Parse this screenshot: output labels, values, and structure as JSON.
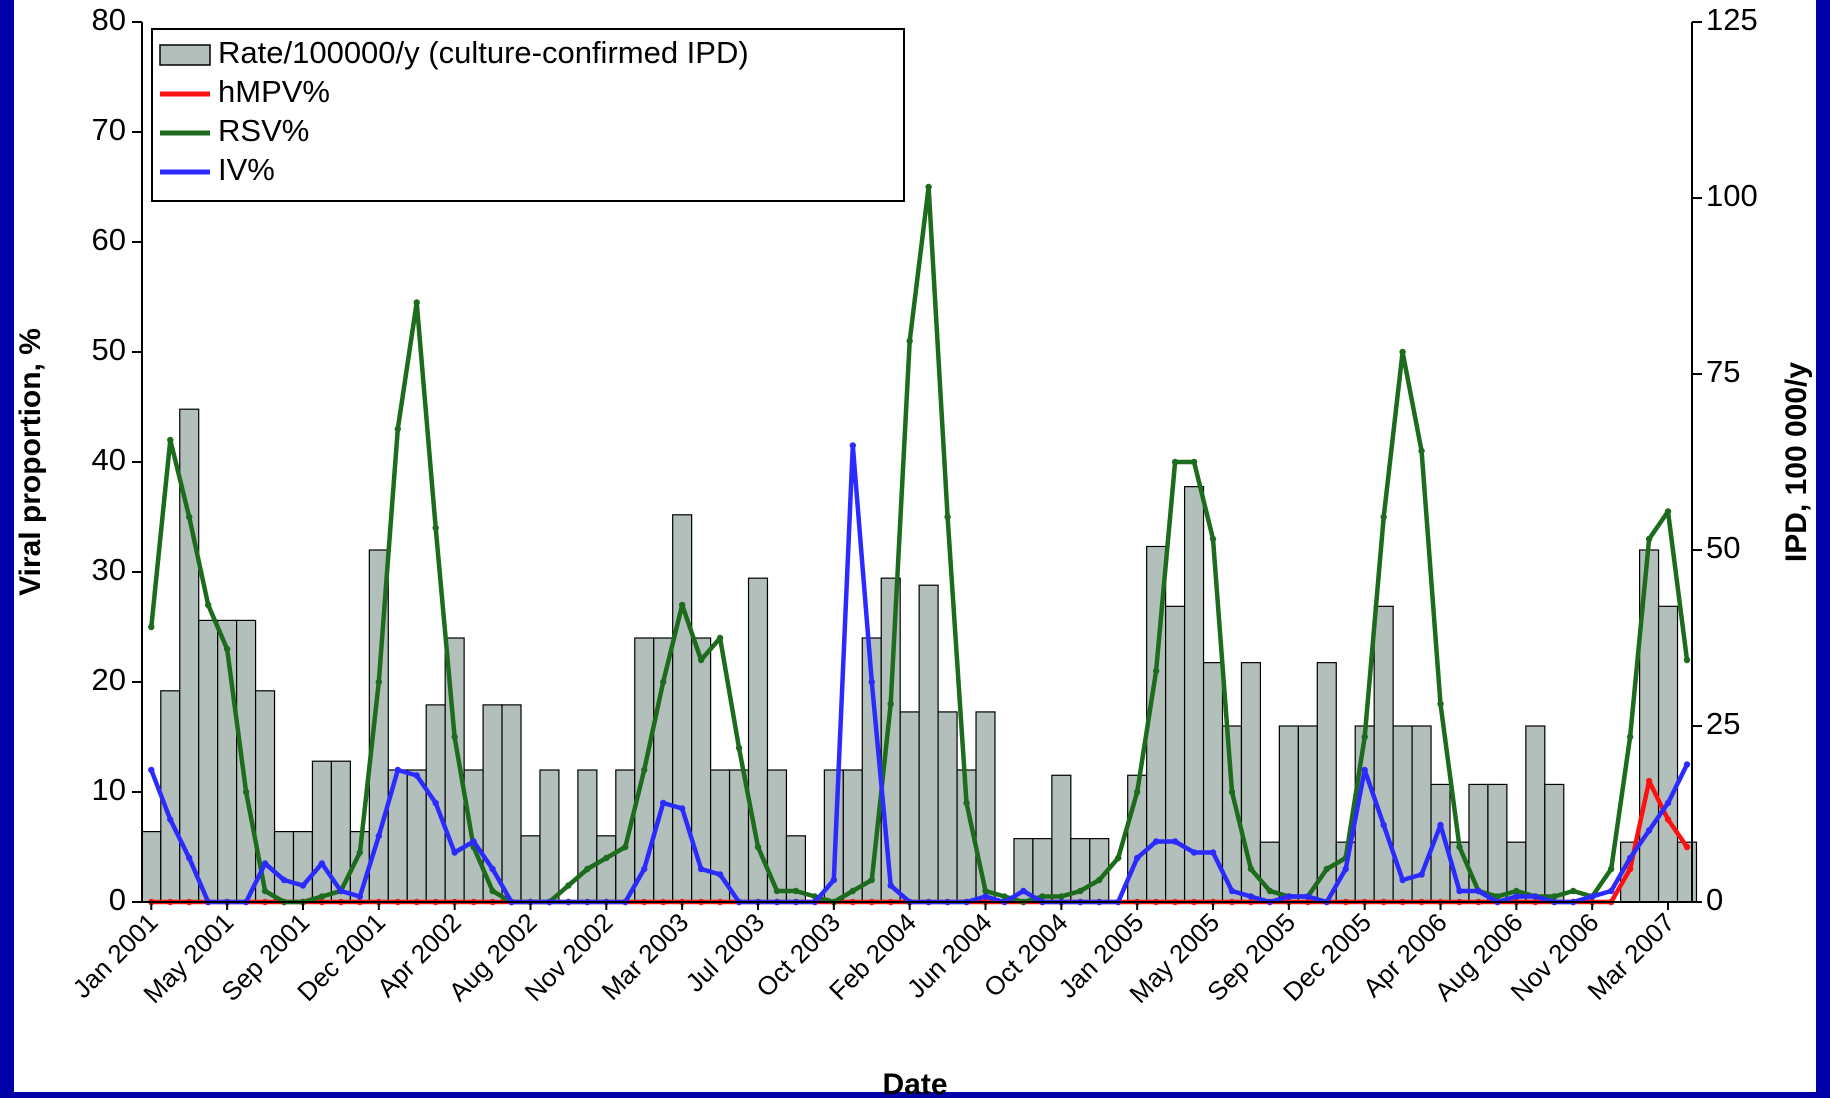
{
  "chart_data": {
    "type": "combo",
    "x_label": "Date",
    "y_label": "Viral proportion, %",
    "y2_label": "IPD, 100 000/y",
    "categories": [
      "Jan 2001",
      null,
      null,
      null,
      "May 2001",
      null,
      null,
      null,
      "Sep 2001",
      null,
      null,
      null,
      "Dec 2001",
      null,
      null,
      null,
      "Apr 2002",
      null,
      null,
      null,
      "Aug 2002",
      null,
      null,
      null,
      "Nov 2002",
      null,
      null,
      null,
      "Mar 2003",
      null,
      null,
      null,
      "Jul 2003",
      null,
      null,
      null,
      "Oct 2003",
      null,
      null,
      null,
      "Feb 2004",
      null,
      null,
      null,
      "Jun 2004",
      null,
      null,
      null,
      "Oct 2004",
      null,
      null,
      null,
      "Jan 2005",
      null,
      null,
      null,
      "May 2005",
      null,
      null,
      null,
      "Sep 2005",
      null,
      null,
      null,
      "Dec 2005",
      null,
      null,
      null,
      "Apr 2006",
      null,
      null,
      null,
      "Aug 2006",
      null,
      null,
      null,
      "Nov 2006",
      null,
      null,
      null,
      "Mar 2007",
      null
    ],
    "series": [
      {
        "name": "Rate/100000/y (culture-confirmed IPD)",
        "type": "bar",
        "axis": "y2",
        "color": "#b3bfbb",
        "values": [
          10,
          30,
          70,
          40,
          40,
          40,
          30,
          10,
          10,
          20,
          20,
          10,
          50,
          18.75,
          18.75,
          28,
          37.5,
          18.75,
          28,
          28,
          9.4,
          18.75,
          0,
          18.75,
          9.4,
          18.75,
          37.5,
          37.5,
          55,
          37.5,
          18.75,
          18.75,
          46,
          18.75,
          9.4,
          0,
          18.75,
          18.75,
          37.5,
          46,
          27,
          45,
          27,
          18.75,
          27,
          0,
          9,
          9,
          18,
          9,
          9,
          0,
          18,
          50.5,
          42,
          59,
          34,
          25,
          34,
          8.5,
          25,
          25,
          34,
          8.5,
          25,
          42,
          25,
          25,
          16.7,
          8.5,
          16.7,
          16.7,
          8.5,
          25,
          16.7,
          0,
          0,
          0,
          8.5,
          50,
          42,
          8.5
        ]
      },
      {
        "name": "hMPV%",
        "type": "line",
        "color": "#ff1010",
        "values": [
          0,
          0,
          0,
          0,
          0,
          0,
          0,
          0,
          0,
          0,
          0,
          0,
          0,
          0,
          0,
          0,
          0,
          0,
          0,
          0,
          0,
          0,
          0,
          0,
          0,
          0,
          0,
          0,
          0,
          0,
          0,
          0,
          0,
          0,
          0,
          0,
          0,
          0,
          0,
          0,
          0,
          0,
          0,
          0,
          0,
          0,
          0,
          0,
          0,
          0,
          0,
          0,
          0,
          0,
          0,
          0,
          0,
          0,
          0,
          0,
          0,
          0,
          0,
          0,
          0,
          0,
          0,
          0,
          0,
          0,
          0,
          0,
          0,
          0,
          0,
          0,
          0,
          0,
          3,
          11,
          7.5,
          5
        ]
      },
      {
        "name": "RSV%",
        "type": "line",
        "color": "#1d6b1d",
        "values": [
          25,
          42,
          35,
          27,
          23,
          10,
          1,
          0,
          0,
          0.5,
          1,
          4.5,
          20,
          43,
          54.5,
          34,
          15,
          5,
          1,
          0,
          0,
          0,
          1.5,
          3,
          4,
          5,
          12,
          20,
          27,
          22,
          24,
          14,
          5,
          1,
          1,
          0.5,
          0,
          1,
          2,
          18,
          51,
          65,
          35,
          9,
          1,
          0.5,
          0,
          0.5,
          0.5,
          1,
          2,
          4,
          10,
          21,
          40,
          40,
          33,
          10,
          3,
          1,
          0.5,
          0.5,
          3,
          4,
          15,
          35,
          50,
          41,
          18,
          5,
          1,
          0.5,
          1,
          0.5,
          0.5,
          1,
          0.5,
          3,
          15,
          33,
          35.5,
          22
        ]
      },
      {
        "name": "IV%",
        "type": "line",
        "color": "#2b2bff",
        "values": [
          12,
          7.5,
          4,
          0,
          0,
          0,
          3.5,
          2,
          1.5,
          3.5,
          1,
          0.5,
          6,
          12,
          11.5,
          9,
          4.5,
          5.5,
          3,
          0,
          0,
          0,
          0,
          0,
          0,
          0,
          3,
          9,
          8.5,
          3,
          2.5,
          0,
          0,
          0,
          0,
          0,
          2,
          41.5,
          20,
          1.5,
          0,
          0,
          0,
          0,
          0.5,
          0,
          1,
          0,
          0,
          0,
          0,
          0,
          4,
          5.5,
          5.5,
          4.5,
          4.5,
          1,
          0.5,
          0,
          0.5,
          0.5,
          0,
          3,
          12,
          7,
          2,
          2.5,
          7,
          1,
          1,
          0,
          0.5,
          0.5,
          0,
          0,
          0.5,
          1,
          4,
          6.5,
          9,
          12.5
        ]
      }
    ],
    "ylim": [
      0,
      80
    ],
    "yticks": [
      0,
      10,
      20,
      30,
      40,
      50,
      60,
      70,
      80
    ],
    "y2lim": [
      0,
      125
    ],
    "y2ticks": [
      0,
      25,
      50,
      75,
      100,
      125
    ],
    "legend": "upper left"
  }
}
